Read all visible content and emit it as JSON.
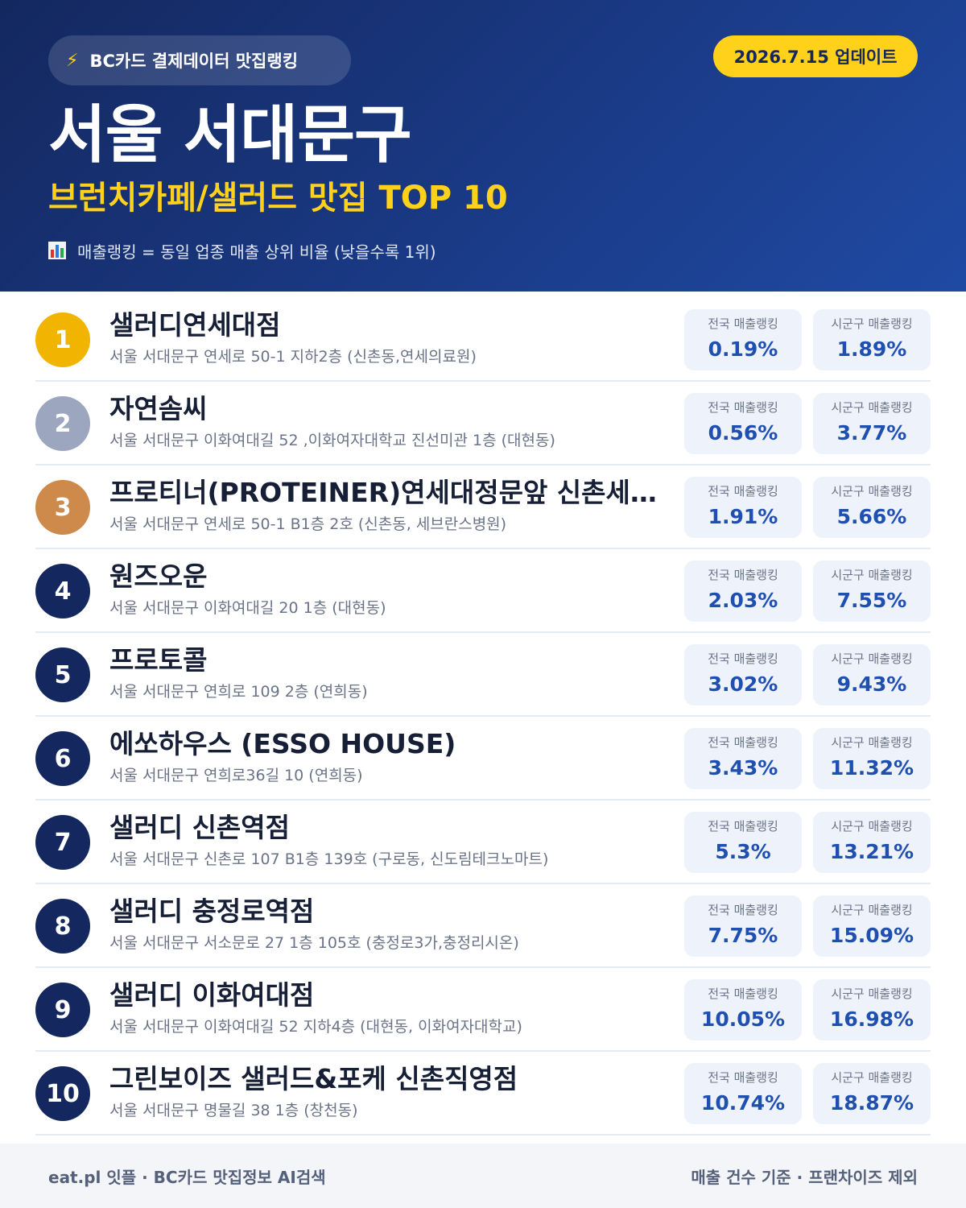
{
  "header": {
    "badge_icon": "lightning-bolt-icon",
    "badge_text": "BC카드 결제데이터 맛집랭킹",
    "update": "2026.7.15 업데이트",
    "title": "서울 서대문구",
    "subtitle": "브런치카페/샐러드 맛집 TOP 10",
    "note_icon": "bar-chart-icon",
    "note": "매출랭킹 = 동일 업종 매출 상위 비율 (낮을수록 1위)"
  },
  "labels": {
    "national": "전국 매출랭킹",
    "local": "시군구 매출랭킹"
  },
  "items": [
    {
      "rank": "1",
      "name": "샐러디연세대점",
      "address": "서울 서대문구 연세로 50-1 지하2층 (신촌동,연세의료원)",
      "national": "0.19%",
      "local": "1.89%"
    },
    {
      "rank": "2",
      "name": "자연솜씨",
      "address": "서울 서대문구 이화여대길 52 ,이화여자대학교 진선미관 1층 (대현동)",
      "national": "0.56%",
      "local": "3.77%"
    },
    {
      "rank": "3",
      "name": "프로티너(PROTEINER)연세대정문앞 신촌세브…",
      "address": "서울 서대문구 연세로 50-1 B1층 2호 (신촌동, 세브란스병원)",
      "national": "1.91%",
      "local": "5.66%"
    },
    {
      "rank": "4",
      "name": "원즈오운",
      "address": "서울 서대문구 이화여대길 20 1층 (대현동)",
      "national": "2.03%",
      "local": "7.55%"
    },
    {
      "rank": "5",
      "name": "프로토콜",
      "address": "서울 서대문구 연희로 109 2층 (연희동)",
      "national": "3.02%",
      "local": "9.43%"
    },
    {
      "rank": "6",
      "name": "에쏘하우스 (ESSO HOUSE)",
      "address": "서울 서대문구 연희로36길 10 (연희동)",
      "national": "3.43%",
      "local": "11.32%"
    },
    {
      "rank": "7",
      "name": "샐러디 신촌역점",
      "address": "서울 서대문구 신촌로 107 B1층 139호 (구로동, 신도림테크노마트)",
      "national": "5.3%",
      "local": "13.21%"
    },
    {
      "rank": "8",
      "name": "샐러디 충정로역점",
      "address": "서울 서대문구 서소문로 27 1층 105호 (충정로3가,충정리시온)",
      "national": "7.75%",
      "local": "15.09%"
    },
    {
      "rank": "9",
      "name": "샐러디 이화여대점",
      "address": "서울 서대문구 이화여대길 52 지하4층 (대현동, 이화여자대학교)",
      "national": "10.05%",
      "local": "16.98%"
    },
    {
      "rank": "10",
      "name": "그린보이즈 샐러드&포케 신촌직영점",
      "address": "서울 서대문구 명물길 38 1층 (창천동)",
      "national": "10.74%",
      "local": "18.87%"
    }
  ],
  "footer": {
    "left": "eat.pl 잇플 · BC카드 맛집정보 AI검색",
    "right": "매출 건수 기준 · 프랜차이즈 제외"
  },
  "colors": {
    "header_bg": "#1a3a86",
    "accent_yellow": "#ffd11a",
    "value_blue": "#1f4fb0",
    "gold": "#f1b400",
    "silver": "#9ca7bf",
    "bronze": "#cd8a4a"
  }
}
